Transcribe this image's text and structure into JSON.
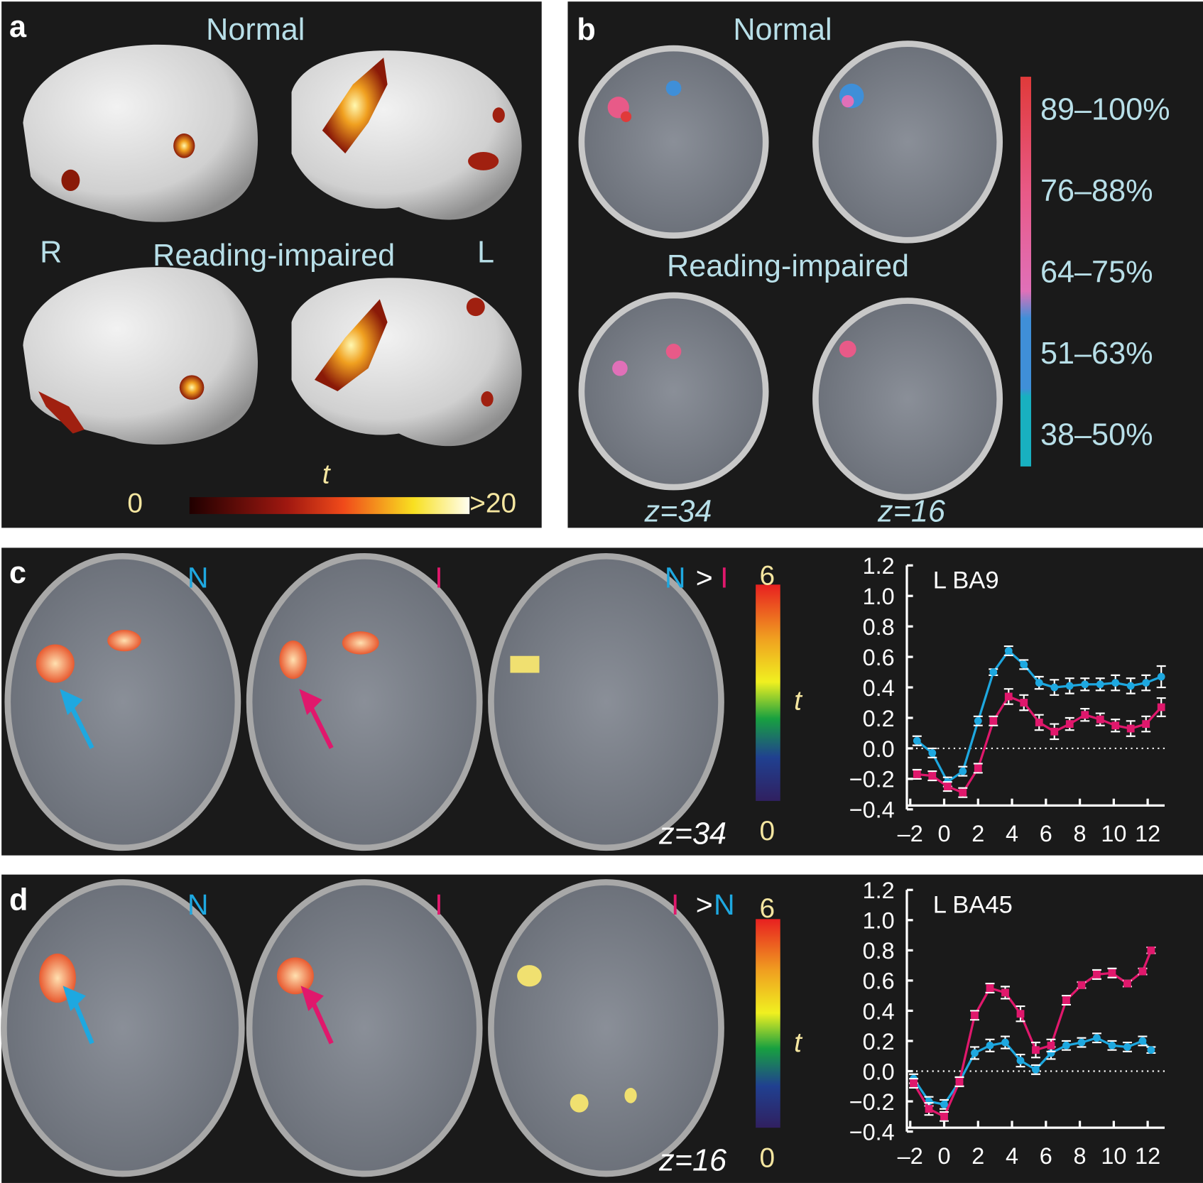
{
  "panel_a": {
    "label": "a",
    "top_title": "Normal",
    "right": "R",
    "bottom_title": "Reading-impaired",
    "left": "L",
    "scale_title": "t",
    "scale_min": "0",
    "scale_max": ">20"
  },
  "panel_b": {
    "label": "b",
    "top_title": "Normal",
    "bottom_title": "Reading-impaired",
    "slice_1": "z=34",
    "slice_2": "z=16",
    "legend": [
      {
        "label": "89–100%",
        "color": "#e03a3a"
      },
      {
        "label": "76–88%",
        "color": "#e85a88"
      },
      {
        "label": "64–75%",
        "color": "#e070b8"
      },
      {
        "label": "51–63%",
        "color": "#3f8fd8"
      },
      {
        "label": "38–50%",
        "color": "#18b0c0"
      }
    ]
  },
  "panel_c": {
    "label": "c",
    "image_1": "N",
    "image_2": "I",
    "contrast_left": "N",
    "contrast_op": ">",
    "contrast_right": "I",
    "scale_max": "6",
    "scale_title": "t",
    "scale_min": "0",
    "slice": "z=34"
  },
  "panel_d": {
    "label": "d",
    "image_1": "N",
    "image_2": "I",
    "contrast_left": "I",
    "contrast_op": ">",
    "contrast_right": "N",
    "scale_max": "6",
    "scale_title": "t",
    "scale_min": "0",
    "slice": "z=16"
  },
  "chart_data": [
    {
      "type": "line",
      "title": "L BA9",
      "x": [
        -1.6,
        -0.7,
        0.2,
        1.1,
        2.0,
        2.9,
        3.8,
        4.7,
        5.6,
        6.5,
        7.4,
        8.3,
        9.2,
        10.1,
        11.0,
        11.9,
        12.8
      ],
      "series": [
        {
          "name": "N",
          "color": "#1ea8e0",
          "marker": "circle",
          "values": [
            0.05,
            -0.03,
            -0.22,
            -0.15,
            0.18,
            0.5,
            0.64,
            0.55,
            0.43,
            0.4,
            0.41,
            0.42,
            0.42,
            0.43,
            0.41,
            0.43,
            0.47
          ],
          "errors": [
            0.03,
            0.03,
            0.03,
            0.03,
            0.03,
            0.02,
            0.03,
            0.03,
            0.04,
            0.05,
            0.05,
            0.04,
            0.04,
            0.05,
            0.05,
            0.05,
            0.07
          ]
        },
        {
          "name": "I",
          "color": "#e0186c",
          "marker": "square",
          "values": [
            -0.17,
            -0.18,
            -0.25,
            -0.29,
            -0.13,
            0.18,
            0.34,
            0.3,
            0.17,
            0.11,
            0.16,
            0.22,
            0.19,
            0.15,
            0.13,
            0.16,
            0.27
          ],
          "errors": [
            0.03,
            0.03,
            0.03,
            0.03,
            0.03,
            0.03,
            0.05,
            0.05,
            0.05,
            0.05,
            0.04,
            0.04,
            0.04,
            0.04,
            0.05,
            0.05,
            0.06
          ]
        }
      ],
      "xlim": [
        -2.2,
        13
      ],
      "ylim": [
        -0.4,
        1.2
      ],
      "xticks": [
        {
          "value": -2,
          "label": "–2"
        },
        0,
        2,
        4,
        6,
        8,
        10,
        12
      ],
      "yticks": [
        1.2,
        {
          "value": 1,
          "label": "1.0"
        },
        0.8,
        0.6,
        0.4,
        0.2,
        {
          "value": 0,
          "label": "0.0"
        },
        {
          "value": -0.2,
          "label": "−0.2"
        },
        {
          "value": -0.4,
          "label": "−0.4"
        }
      ],
      "reference_line": 0
    },
    {
      "type": "line",
      "title": "L BA45",
      "x": [
        -1.8,
        -0.9,
        0.0,
        0.9,
        1.8,
        2.7,
        3.6,
        4.5,
        5.4,
        6.3,
        7.2,
        8.1,
        9.0,
        9.9,
        10.8,
        11.7,
        12.2
      ],
      "series": [
        {
          "name": "N",
          "color": "#1ea8e0",
          "marker": "circle",
          "values": [
            -0.05,
            -0.2,
            -0.22,
            -0.07,
            0.12,
            0.17,
            0.19,
            0.07,
            0.01,
            0.12,
            0.17,
            0.19,
            0.22,
            0.17,
            0.16,
            0.2,
            0.14
          ],
          "errors": [
            0.03,
            0.03,
            0.03,
            0.03,
            0.04,
            0.04,
            0.04,
            0.04,
            0.03,
            0.04,
            0.03,
            0.03,
            0.03,
            0.03,
            0.03,
            0.03,
            0.02
          ]
        },
        {
          "name": "I",
          "color": "#e0186c",
          "marker": "square",
          "values": [
            -0.08,
            -0.25,
            -0.3,
            -0.07,
            0.37,
            0.55,
            0.52,
            0.38,
            0.14,
            0.17,
            0.47,
            0.57,
            0.64,
            0.65,
            0.58,
            0.66,
            0.8
          ],
          "errors": [
            0.03,
            0.04,
            0.03,
            0.03,
            0.03,
            0.03,
            0.04,
            0.05,
            0.05,
            0.04,
            0.03,
            0.02,
            0.03,
            0.03,
            0.02,
            0.02,
            0.02
          ]
        }
      ],
      "xlim": [
        -2.2,
        13
      ],
      "ylim": [
        -0.4,
        1.2
      ],
      "xticks": [
        {
          "value": -2,
          "label": "–2"
        },
        0,
        2,
        4,
        6,
        8,
        10,
        12
      ],
      "yticks": [
        1.2,
        {
          "value": 1,
          "label": "1.0"
        },
        0.8,
        0.6,
        0.4,
        0.2,
        {
          "value": 0,
          "label": "0.0"
        },
        {
          "value": -0.2,
          "label": "−0.2"
        },
        {
          "value": -0.4,
          "label": "−0.4"
        }
      ],
      "reference_line": 0
    }
  ]
}
